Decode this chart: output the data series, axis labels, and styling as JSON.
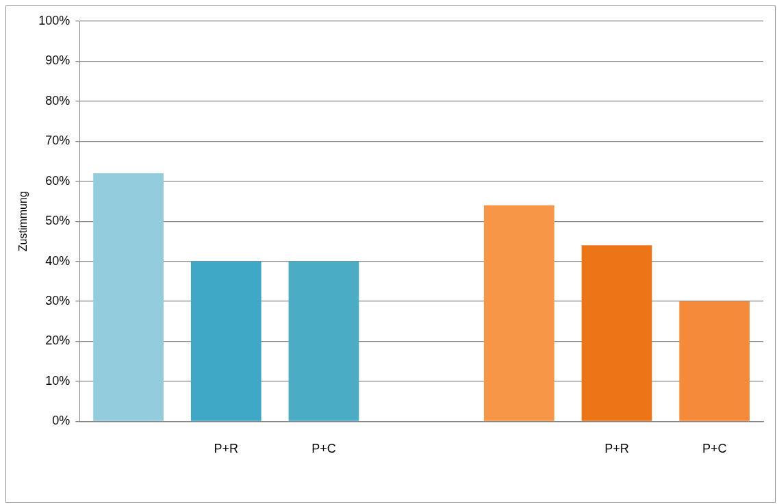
{
  "chart_data": {
    "type": "bar",
    "ylabel": "Zustimmung",
    "categories": [
      null,
      "P+R",
      "P+C",
      null,
      null,
      "P+R",
      "P+C"
    ],
    "values": [
      62,
      40,
      40,
      null,
      54,
      44,
      30
    ],
    "colors": [
      "#93cddd",
      "#3fa8c6",
      "#4bacc6",
      "#ffffff",
      "#f79646",
      "#ec7518",
      "#f58a3a"
    ],
    "ylim": [
      0,
      100
    ],
    "yticks": [
      {
        "value": 0,
        "label": "0%"
      },
      {
        "value": 10,
        "label": "10%"
      },
      {
        "value": 20,
        "label": "20%"
      },
      {
        "value": 30,
        "label": "30%"
      },
      {
        "value": 40,
        "label": "40%"
      },
      {
        "value": 50,
        "label": "50%"
      },
      {
        "value": 60,
        "label": "60%"
      },
      {
        "value": 70,
        "label": "70%"
      },
      {
        "value": 80,
        "label": "80%"
      },
      {
        "value": 90,
        "label": "90%"
      },
      {
        "value": 100,
        "label": "100%"
      }
    ],
    "grid": "y",
    "legend": false
  }
}
